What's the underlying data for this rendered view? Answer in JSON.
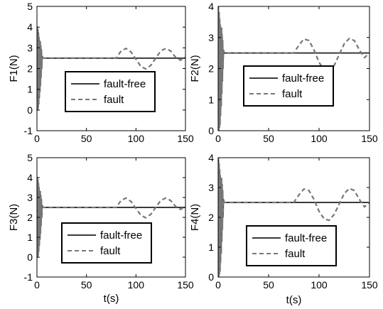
{
  "figure": {
    "shared_xlabel": "t(s)"
  },
  "chart_data": [
    {
      "id": "F1",
      "type": "line",
      "ylabel": "F1(N)",
      "xlabel": "",
      "xlim": [
        0,
        150
      ],
      "ylim": [
        -1,
        5
      ],
      "xticks": [
        "0",
        "50",
        "100",
        "150"
      ],
      "yticks": [
        "-1",
        "0",
        "1",
        "2",
        "3",
        "4",
        "5"
      ],
      "series": [
        {
          "name": "fault-free",
          "style": "solid",
          "color": "#3a3a3a",
          "x": [
            0,
            0.3,
            0.6,
            0.9,
            1.2,
            1.5,
            1.8,
            2.1,
            2.4,
            2.7,
            3.0,
            3.3,
            3.6,
            3.9,
            4.2,
            4.5,
            4.8,
            5.2,
            6,
            150
          ],
          "y": [
            2.5,
            4.0,
            0.0,
            3.9,
            0.1,
            3.7,
            0.3,
            3.5,
            0.6,
            3.3,
            0.9,
            3.3,
            1.2,
            3.1,
            1.6,
            2.9,
            2.0,
            2.6,
            2.5,
            2.5
          ]
        },
        {
          "name": "fault",
          "style": "dashed",
          "color": "#777777",
          "x": [
            0,
            0.3,
            0.6,
            0.9,
            1.2,
            1.5,
            1.8,
            2.1,
            2.4,
            2.7,
            3.0,
            3.3,
            3.6,
            3.9,
            4.2,
            4.5,
            4.8,
            5.2,
            6,
            80,
            85,
            90,
            95,
            100,
            105,
            110,
            115,
            120,
            125,
            130,
            135,
            140,
            145,
            150
          ],
          "y": [
            2.5,
            4.0,
            0.0,
            3.9,
            0.1,
            3.7,
            0.3,
            3.5,
            0.6,
            3.3,
            0.9,
            3.3,
            1.2,
            3.1,
            1.6,
            2.9,
            2.0,
            2.6,
            2.5,
            2.5,
            2.85,
            2.97,
            2.8,
            2.45,
            2.1,
            1.98,
            2.15,
            2.5,
            2.85,
            2.97,
            2.85,
            2.55,
            2.4,
            2.55
          ]
        }
      ],
      "legend": {
        "placement": "lower-center",
        "entries": [
          "fault-free",
          "fault"
        ]
      }
    },
    {
      "id": "F2",
      "type": "line",
      "ylabel": "F2(N)",
      "xlabel": "",
      "xlim": [
        0,
        150
      ],
      "ylim": [
        0,
        4
      ],
      "xticks": [
        "0",
        "50",
        "100",
        "150"
      ],
      "yticks": [
        "0",
        "1",
        "2",
        "3",
        "4"
      ],
      "series": [
        {
          "name": "fault-free",
          "style": "solid",
          "color": "#3a3a3a",
          "x": [
            0,
            0.3,
            0.6,
            0.9,
            1.2,
            1.5,
            1.8,
            2.1,
            2.4,
            2.7,
            3.0,
            3.3,
            3.6,
            3.9,
            4.2,
            4.5,
            4.8,
            5.2,
            6,
            150
          ],
          "y": [
            2.5,
            4.0,
            0.0,
            3.8,
            0.1,
            3.6,
            0.2,
            3.4,
            0.5,
            3.3,
            0.8,
            3.3,
            1.2,
            3.1,
            1.6,
            2.9,
            2.0,
            2.6,
            2.5,
            2.5
          ]
        },
        {
          "name": "fault",
          "style": "dashed",
          "color": "#777777",
          "x": [
            0,
            0.3,
            0.6,
            0.9,
            1.2,
            1.5,
            1.8,
            2.1,
            2.4,
            2.7,
            3.0,
            3.3,
            3.6,
            3.9,
            4.2,
            4.5,
            4.8,
            5.2,
            6,
            75,
            80,
            85,
            90,
            95,
            100,
            105,
            110,
            115,
            120,
            125,
            130,
            135,
            140,
            145,
            150
          ],
          "y": [
            2.5,
            4.0,
            0.0,
            3.8,
            0.1,
            3.6,
            0.2,
            3.4,
            0.5,
            3.3,
            0.8,
            3.3,
            1.2,
            3.1,
            1.6,
            2.9,
            2.0,
            2.6,
            2.5,
            2.5,
            2.75,
            2.95,
            2.9,
            2.6,
            2.2,
            1.95,
            1.9,
            2.1,
            2.45,
            2.8,
            2.97,
            2.9,
            2.6,
            2.35,
            2.5
          ]
        }
      ],
      "legend": {
        "placement": "lower-center",
        "entries": [
          "fault-free",
          "fault"
        ]
      }
    },
    {
      "id": "F3",
      "type": "line",
      "ylabel": "F3(N)",
      "xlabel": "t(s)",
      "xlim": [
        0,
        150
      ],
      "ylim": [
        -1,
        5
      ],
      "xticks": [
        "0",
        "50",
        "100",
        "150"
      ],
      "yticks": [
        "-1",
        "0",
        "1",
        "2",
        "3",
        "4",
        "5"
      ],
      "series": [
        {
          "name": "fault-free",
          "style": "solid",
          "color": "#3a3a3a",
          "x": [
            0,
            0.3,
            0.6,
            0.9,
            1.2,
            1.5,
            1.8,
            2.1,
            2.4,
            2.7,
            3.0,
            3.3,
            3.6,
            3.9,
            4.2,
            4.5,
            4.8,
            5.2,
            6,
            150
          ],
          "y": [
            2.5,
            4.0,
            0.0,
            3.9,
            0.1,
            3.7,
            0.3,
            3.5,
            0.6,
            3.3,
            0.9,
            3.3,
            1.2,
            3.1,
            1.6,
            2.9,
            2.0,
            2.6,
            2.5,
            2.5
          ]
        },
        {
          "name": "fault",
          "style": "dashed",
          "color": "#777777",
          "x": [
            0,
            0.3,
            0.6,
            0.9,
            1.2,
            1.5,
            1.8,
            2.1,
            2.4,
            2.7,
            3.0,
            3.3,
            3.6,
            3.9,
            4.2,
            4.5,
            4.8,
            5.2,
            6,
            80,
            85,
            90,
            95,
            100,
            105,
            110,
            115,
            120,
            125,
            130,
            135,
            140,
            145,
            150
          ],
          "y": [
            2.5,
            4.0,
            0.0,
            3.9,
            0.1,
            3.7,
            0.3,
            3.5,
            0.6,
            3.3,
            0.9,
            3.3,
            1.2,
            3.1,
            1.6,
            2.9,
            2.0,
            2.6,
            2.5,
            2.5,
            2.85,
            2.97,
            2.8,
            2.45,
            2.1,
            1.98,
            2.15,
            2.5,
            2.85,
            2.97,
            2.85,
            2.55,
            2.4,
            2.55
          ]
        }
      ],
      "legend": {
        "placement": "lower-center",
        "entries": [
          "fault-free",
          "fault"
        ]
      }
    },
    {
      "id": "F4",
      "type": "line",
      "ylabel": "F4(N)",
      "xlabel": "t(s)",
      "xlim": [
        0,
        150
      ],
      "ylim": [
        0,
        4
      ],
      "xticks": [
        "0",
        "50",
        "100",
        "150"
      ],
      "yticks": [
        "0",
        "1",
        "2",
        "3",
        "4"
      ],
      "series": [
        {
          "name": "fault-free",
          "style": "solid",
          "color": "#3a3a3a",
          "x": [
            0,
            0.3,
            0.6,
            0.9,
            1.2,
            1.5,
            1.8,
            2.1,
            2.4,
            2.7,
            3.0,
            3.3,
            3.6,
            3.9,
            4.2,
            4.5,
            4.8,
            5.2,
            6,
            150
          ],
          "y": [
            2.5,
            4.0,
            0.0,
            3.8,
            0.1,
            3.6,
            0.2,
            3.4,
            0.5,
            3.3,
            0.8,
            3.3,
            1.2,
            3.1,
            1.6,
            2.9,
            2.0,
            2.6,
            2.5,
            2.5
          ]
        },
        {
          "name": "fault",
          "style": "dashed",
          "color": "#777777",
          "x": [
            0,
            0.3,
            0.6,
            0.9,
            1.2,
            1.5,
            1.8,
            2.1,
            2.4,
            2.7,
            3.0,
            3.3,
            3.6,
            3.9,
            4.2,
            4.5,
            4.8,
            5.2,
            6,
            75,
            80,
            85,
            90,
            95,
            100,
            105,
            110,
            115,
            120,
            125,
            130,
            135,
            140,
            145,
            150
          ],
          "y": [
            2.5,
            4.0,
            0.0,
            3.8,
            0.1,
            3.6,
            0.2,
            3.4,
            0.5,
            3.3,
            0.8,
            3.3,
            1.2,
            3.1,
            1.6,
            2.9,
            2.0,
            2.6,
            2.5,
            2.5,
            2.75,
            2.95,
            2.9,
            2.6,
            2.2,
            1.95,
            1.9,
            2.1,
            2.45,
            2.8,
            2.97,
            2.9,
            2.6,
            2.35,
            2.5
          ]
        }
      ],
      "legend": {
        "placement": "lower-center",
        "entries": [
          "fault-free",
          "fault"
        ]
      }
    }
  ]
}
